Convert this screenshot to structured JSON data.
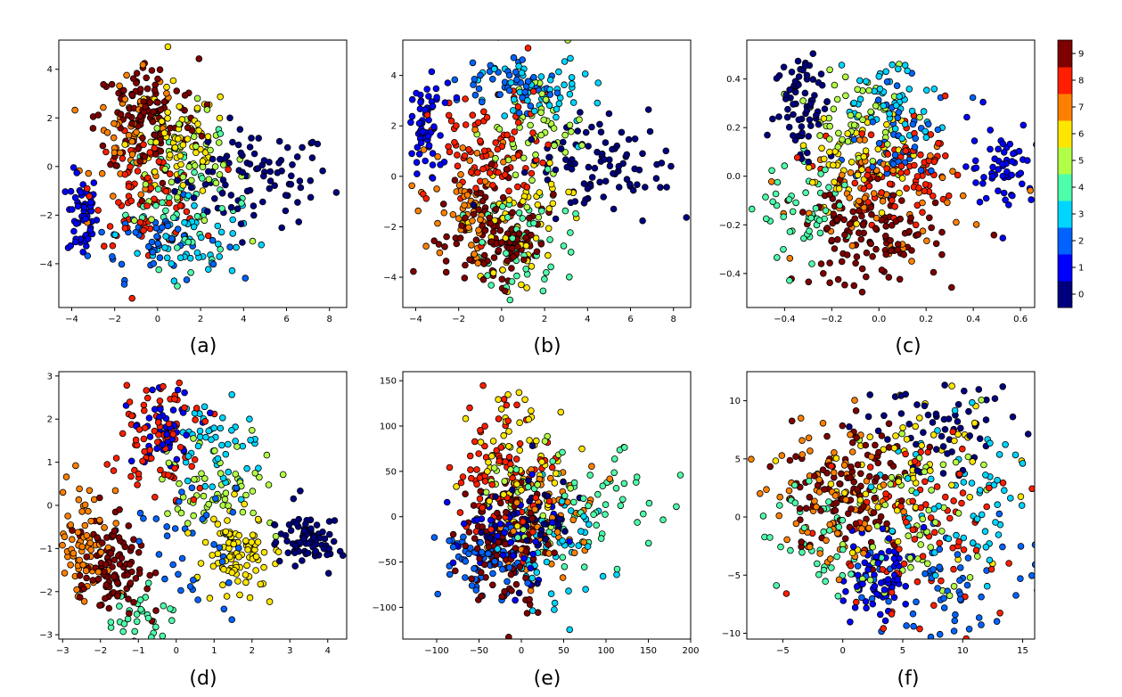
{
  "figure": {
    "description_labels": [
      "(a)",
      "(b)",
      "(c)",
      "(d)",
      "(e)",
      "(f)"
    ]
  },
  "colorbar": {
    "ticks": [
      "0",
      "1",
      "2",
      "3",
      "4",
      "5",
      "6",
      "7",
      "8",
      "9"
    ],
    "colors": [
      "#00007f",
      "#0000ff",
      "#0063ff",
      "#00d5ff",
      "#4dffaa",
      "#b1ff46",
      "#ffe600",
      "#ff8000",
      "#ff1e00",
      "#7f0000"
    ]
  },
  "chart_data": [
    {
      "type": "scatter",
      "label": "(a)",
      "xlim": [
        -4.6,
        8.8
      ],
      "ylim": [
        -5.8,
        5.2
      ],
      "xticks": [
        -4,
        -2,
        0,
        2,
        4,
        6,
        8
      ],
      "xtick_labels": [
        "−4",
        "−2",
        "0",
        "2",
        "4",
        "6",
        "8"
      ],
      "yticks": [
        -4,
        -2,
        0,
        2,
        4
      ],
      "ytick_labels": [
        "−4",
        "−2",
        "0",
        "2",
        "4"
      ],
      "classes": [
        {
          "class": 0,
          "center": [
            4.5,
            -0.5
          ],
          "spread": [
            1.8,
            1.0
          ],
          "n": 90
        },
        {
          "class": 1,
          "center": [
            -3.5,
            -2.0
          ],
          "spread": [
            0.35,
            0.9
          ],
          "n": 60
        },
        {
          "class": 2,
          "center": [
            0.0,
            -3.0
          ],
          "spread": [
            1.5,
            0.8
          ],
          "n": 50
        },
        {
          "class": 3,
          "center": [
            1.5,
            -3.0
          ],
          "spread": [
            1.2,
            0.8
          ],
          "n": 50
        },
        {
          "class": 4,
          "center": [
            1.5,
            -1.5
          ],
          "spread": [
            1.5,
            1.3
          ],
          "n": 50
        },
        {
          "class": 5,
          "center": [
            1.5,
            0.0
          ],
          "spread": [
            1.3,
            1.2
          ],
          "n": 50
        },
        {
          "class": 6,
          "center": [
            1.0,
            1.0
          ],
          "spread": [
            1.2,
            1.2
          ],
          "n": 60
        },
        {
          "class": 7,
          "center": [
            -1.0,
            1.0
          ],
          "spread": [
            1.0,
            1.3
          ],
          "n": 60
        },
        {
          "class": 8,
          "center": [
            -0.5,
            -1.0
          ],
          "spread": [
            1.2,
            1.1
          ],
          "n": 90
        },
        {
          "class": 9,
          "center": [
            -0.5,
            2.0
          ],
          "spread": [
            1.2,
            1.2
          ],
          "n": 120
        }
      ]
    },
    {
      "type": "scatter",
      "label": "(b)",
      "xlim": [
        -4.6,
        8.8
      ],
      "ylim": [
        -5.2,
        5.4
      ],
      "xticks": [
        -4,
        -2,
        0,
        2,
        4,
        6,
        8
      ],
      "xtick_labels": [
        "−4",
        "−2",
        "0",
        "2",
        "4",
        "6",
        "8"
      ],
      "yticks": [
        -4,
        -2,
        0,
        2,
        4
      ],
      "ytick_labels": [
        "−4",
        "−2",
        "0",
        "2",
        "4"
      ],
      "classes": [
        {
          "class": 0,
          "center": [
            4.5,
            0.5
          ],
          "spread": [
            1.8,
            0.9
          ],
          "n": 90
        },
        {
          "class": 1,
          "center": [
            -3.5,
            2.0
          ],
          "spread": [
            0.4,
            0.9
          ],
          "n": 60
        },
        {
          "class": 2,
          "center": [
            0.5,
            3.5
          ],
          "spread": [
            1.3,
            0.6
          ],
          "n": 50
        },
        {
          "class": 3,
          "center": [
            1.5,
            3.5
          ],
          "spread": [
            1.2,
            0.7
          ],
          "n": 50
        },
        {
          "class": 4,
          "center": [
            1.0,
            -2.5
          ],
          "spread": [
            1.3,
            1.2
          ],
          "n": 50
        },
        {
          "class": 5,
          "center": [
            1.5,
            1.5
          ],
          "spread": [
            1.3,
            1.2
          ],
          "n": 50
        },
        {
          "class": 6,
          "center": [
            1.0,
            -1.5
          ],
          "spread": [
            1.2,
            1.2
          ],
          "n": 60
        },
        {
          "class": 7,
          "center": [
            -1.5,
            -1.0
          ],
          "spread": [
            1.0,
            1.3
          ],
          "n": 60
        },
        {
          "class": 8,
          "center": [
            -0.5,
            1.0
          ],
          "spread": [
            1.3,
            1.2
          ],
          "n": 90
        },
        {
          "class": 9,
          "center": [
            -0.5,
            -2.5
          ],
          "spread": [
            1.2,
            1.1
          ],
          "n": 120
        }
      ]
    },
    {
      "type": "scatter",
      "label": "(c)",
      "xlim": [
        -0.56,
        0.66
      ],
      "ylim": [
        -0.54,
        0.56
      ],
      "xticks": [
        -0.4,
        -0.2,
        0.0,
        0.2,
        0.4,
        0.6
      ],
      "xtick_labels": [
        "−0.4",
        "−0.2",
        "0.0",
        "0.2",
        "0.4",
        "0.6"
      ],
      "yticks": [
        -0.4,
        -0.2,
        0.0,
        0.2,
        0.4
      ],
      "ytick_labels": [
        "−0.4",
        "−0.2",
        "0.0",
        "0.2",
        "0.4"
      ],
      "classes": [
        {
          "class": 0,
          "center": [
            -0.32,
            0.3
          ],
          "spread": [
            0.06,
            0.12
          ],
          "n": 70
        },
        {
          "class": 1,
          "center": [
            0.52,
            0.05
          ],
          "spread": [
            0.07,
            0.09
          ],
          "n": 60
        },
        {
          "class": 2,
          "center": [
            0.1,
            0.15
          ],
          "spread": [
            0.12,
            0.1
          ],
          "n": 50
        },
        {
          "class": 3,
          "center": [
            0.05,
            0.3
          ],
          "spread": [
            0.1,
            0.1
          ],
          "n": 50
        },
        {
          "class": 4,
          "center": [
            -0.3,
            -0.15
          ],
          "spread": [
            0.1,
            0.1
          ],
          "n": 50
        },
        {
          "class": 5,
          "center": [
            -0.1,
            0.25
          ],
          "spread": [
            0.1,
            0.1
          ],
          "n": 50
        },
        {
          "class": 6,
          "center": [
            -0.1,
            0.05
          ],
          "spread": [
            0.12,
            0.1
          ],
          "n": 60
        },
        {
          "class": 7,
          "center": [
            0.0,
            -0.1
          ],
          "spread": [
            0.18,
            0.12
          ],
          "n": 60
        },
        {
          "class": 8,
          "center": [
            0.1,
            0.0
          ],
          "spread": [
            0.15,
            0.1
          ],
          "n": 90
        },
        {
          "class": 9,
          "center": [
            -0.05,
            -0.25
          ],
          "spread": [
            0.15,
            0.1
          ],
          "n": 120
        }
      ]
    },
    {
      "type": "scatter",
      "label": "(d)",
      "xlim": [
        -3.1,
        4.5
      ],
      "ylim": [
        -3.1,
        3.1
      ],
      "xticks": [
        -3,
        -2,
        -1,
        0,
        1,
        2,
        3,
        4
      ],
      "xtick_labels": [
        "−3",
        "−2",
        "−1",
        "0",
        "1",
        "2",
        "3",
        "4"
      ],
      "yticks": [
        -3,
        -2,
        -1,
        0,
        1,
        2,
        3
      ],
      "ytick_labels": [
        "−3",
        "−2",
        "−1",
        "0",
        "1",
        "2",
        "3"
      ],
      "classes": [
        {
          "class": 0,
          "center": [
            3.5,
            -0.8
          ],
          "spread": [
            0.4,
            0.3
          ],
          "n": 80
        },
        {
          "class": 1,
          "center": [
            -0.3,
            1.8
          ],
          "spread": [
            0.5,
            0.5
          ],
          "n": 50
        },
        {
          "class": 2,
          "center": [
            0.3,
            -0.8
          ],
          "spread": [
            0.8,
            0.8
          ],
          "n": 40
        },
        {
          "class": 3,
          "center": [
            1.2,
            1.5
          ],
          "spread": [
            0.6,
            0.6
          ],
          "n": 50
        },
        {
          "class": 4,
          "center": [
            -1.0,
            -2.5
          ],
          "spread": [
            0.4,
            0.3
          ],
          "n": 30
        },
        {
          "class": 5,
          "center": [
            1.0,
            0.4
          ],
          "spread": [
            0.8,
            0.5
          ],
          "n": 60
        },
        {
          "class": 6,
          "center": [
            1.7,
            -1.1
          ],
          "spread": [
            0.5,
            0.5
          ],
          "n": 90
        },
        {
          "class": 7,
          "center": [
            -2.4,
            -0.8
          ],
          "spread": [
            0.35,
            0.6
          ],
          "n": 70
        },
        {
          "class": 8,
          "center": [
            -0.5,
            1.6
          ],
          "spread": [
            0.5,
            0.7
          ],
          "n": 80
        },
        {
          "class": 9,
          "center": [
            -1.7,
            -1.5
          ],
          "spread": [
            0.45,
            0.6
          ],
          "n": 110
        }
      ]
    },
    {
      "type": "scatter",
      "label": "(e)",
      "xlim": [
        -140,
        200
      ],
      "ylim": [
        -135,
        160
      ],
      "xticks": [
        -100,
        -50,
        0,
        50,
        100,
        150,
        200
      ],
      "xtick_labels": [
        "−100",
        "−50",
        "0",
        "50",
        "100",
        "150",
        "200"
      ],
      "yticks": [
        -100,
        -50,
        0,
        50,
        100,
        150
      ],
      "ytick_labels": [
        "−100",
        "−50",
        "0",
        "50",
        "100",
        "150"
      ],
      "classes": [
        {
          "class": 0,
          "center": [
            10,
            0
          ],
          "spread": [
            30,
            30
          ],
          "n": 50
        },
        {
          "class": 1,
          "center": [
            -20,
            -20
          ],
          "spread": [
            30,
            30
          ],
          "n": 50
        },
        {
          "class": 2,
          "center": [
            -50,
            -50
          ],
          "spread": [
            25,
            20
          ],
          "n": 60
        },
        {
          "class": 3,
          "center": [
            40,
            -40
          ],
          "spread": [
            30,
            35
          ],
          "n": 50
        },
        {
          "class": 4,
          "center": [
            90,
            10
          ],
          "spread": [
            45,
            30
          ],
          "n": 60
        },
        {
          "class": 5,
          "center": [
            0,
            30
          ],
          "spread": [
            30,
            30
          ],
          "n": 40
        },
        {
          "class": 6,
          "center": [
            0,
            60
          ],
          "spread": [
            30,
            40
          ],
          "n": 60
        },
        {
          "class": 7,
          "center": [
            30,
            0
          ],
          "spread": [
            30,
            30
          ],
          "n": 60
        },
        {
          "class": 8,
          "center": [
            -20,
            50
          ],
          "spread": [
            30,
            40
          ],
          "n": 90
        },
        {
          "class": 9,
          "center": [
            -20,
            -30
          ],
          "spread": [
            25,
            35
          ],
          "n": 120
        }
      ]
    },
    {
      "type": "scatter",
      "label": "(f)",
      "xlim": [
        -8,
        16
      ],
      "ylim": [
        -10.5,
        12.5
      ],
      "xticks": [
        -5,
        0,
        5,
        10,
        15
      ],
      "xtick_labels": [
        "−5",
        "0",
        "5",
        "10",
        "15"
      ],
      "yticks": [
        -10,
        -5,
        0,
        5,
        10
      ],
      "ytick_labels": [
        "−10",
        "−5",
        "0",
        "5",
        "10"
      ],
      "classes": [
        {
          "class": 0,
          "center": [
            9,
            8
          ],
          "spread": [
            4,
            2
          ],
          "n": 60
        },
        {
          "class": 1,
          "center": [
            3,
            -5
          ],
          "spread": [
            1.5,
            2
          ],
          "n": 70
        },
        {
          "class": 2,
          "center": [
            9,
            -6
          ],
          "spread": [
            4,
            2.5
          ],
          "n": 70
        },
        {
          "class": 3,
          "center": [
            10,
            2
          ],
          "spread": [
            3,
            3
          ],
          "n": 60
        },
        {
          "class": 4,
          "center": [
            -2,
            -2
          ],
          "spread": [
            2.5,
            3
          ],
          "n": 40
        },
        {
          "class": 5,
          "center": [
            6,
            0
          ],
          "spread": [
            4,
            4
          ],
          "n": 60
        },
        {
          "class": 6,
          "center": [
            5,
            4
          ],
          "spread": [
            4,
            4
          ],
          "n": 70
        },
        {
          "class": 7,
          "center": [
            -1,
            2
          ],
          "spread": [
            2.5,
            3.5
          ],
          "n": 80
        },
        {
          "class": 8,
          "center": [
            6,
            -2
          ],
          "spread": [
            4,
            4
          ],
          "n": 90
        },
        {
          "class": 9,
          "center": [
            1,
            3
          ],
          "spread": [
            2.5,
            3
          ],
          "n": 110
        }
      ]
    }
  ]
}
